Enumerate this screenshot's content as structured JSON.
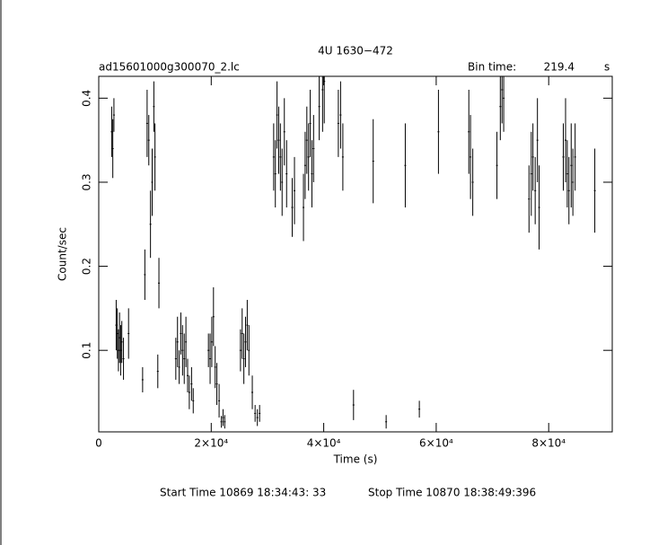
{
  "chart_data": {
    "type": "scatter",
    "title": "4U 1630−472",
    "file_label": "ad15601000g300070_2.lc",
    "bin_time_label": "Bin time:",
    "bin_time": 219.4,
    "bin_time_unit": "s",
    "x_label": "Time (s)",
    "y_label": "Count/sec",
    "start_time": "Start Time 10869 18:34:43: 33",
    "stop_time": "Stop Time 10870 18:38:49:396",
    "color": "#000000",
    "xlim": [
      0,
      91300
    ],
    "ylim": [
      0.003,
      0.426
    ],
    "xticks": [
      0,
      {
        "value": 20000,
        "label": "2×10⁴"
      },
      {
        "value": 40000,
        "label": "4×10⁴"
      },
      {
        "value": 60000,
        "label": "6×10⁴"
      },
      {
        "value": 80000,
        "label": "8×10⁴"
      }
    ],
    "yticks": [
      0.1,
      0.2,
      0.3,
      0.4
    ],
    "x": [
      2300,
      2500,
      2700,
      3100,
      3300,
      3500,
      3700,
      3900,
      4100,
      4400,
      5300,
      7800,
      8200,
      8600,
      8900,
      9200,
      9500,
      9800,
      10000,
      10500,
      10700,
      13700,
      14000,
      14300,
      14600,
      14900,
      15200,
      15500,
      15800,
      16100,
      16500,
      16800,
      19500,
      19800,
      20100,
      20400,
      20700,
      21000,
      21400,
      21800,
      22100,
      22400,
      25200,
      25500,
      25800,
      26100,
      26400,
      26700,
      27300,
      27800,
      28200,
      28600,
      31100,
      31400,
      31700,
      32000,
      32300,
      32600,
      33000,
      33400,
      34400,
      34800,
      36400,
      36700,
      37000,
      37300,
      37600,
      37900,
      38200,
      39200,
      39800,
      40100,
      42600,
      43000,
      43400,
      45300,
      48800,
      51100,
      54500,
      57000,
      60400,
      65800,
      66100,
      66500,
      70800,
      71400,
      71700,
      72000,
      76500,
      76900,
      77200,
      77600,
      78000,
      78300,
      82600,
      83000,
      83300,
      83600,
      84000,
      84300,
      84700,
      88200
    ],
    "values": [
      0.36,
      0.34,
      0.38,
      0.13,
      0.12,
      0.1,
      0.115,
      0.1,
      0.11,
      0.09,
      0.12,
      0.065,
      0.19,
      0.37,
      0.35,
      0.25,
      0.3,
      0.39,
      0.33,
      0.075,
      0.18,
      0.09,
      0.11,
      0.08,
      0.12,
      0.1,
      0.09,
      0.11,
      0.07,
      0.05,
      0.06,
      0.04,
      0.1,
      0.09,
      0.11,
      0.14,
      0.08,
      0.06,
      0.04,
      0.015,
      0.02,
      0.015,
      0.1,
      0.12,
      0.09,
      0.11,
      0.13,
      0.1,
      0.05,
      0.025,
      0.02,
      0.025,
      0.33,
      0.31,
      0.38,
      0.35,
      0.33,
      0.3,
      0.36,
      0.31,
      0.27,
      0.29,
      0.27,
      0.32,
      0.35,
      0.33,
      0.37,
      0.31,
      0.34,
      0.39,
      0.41,
      0.42,
      0.37,
      0.38,
      0.33,
      0.035,
      0.325,
      0.015,
      0.32,
      0.03,
      0.36,
      0.36,
      0.33,
      0.3,
      0.32,
      0.39,
      0.41,
      0.4,
      0.28,
      0.31,
      0.33,
      0.29,
      0.35,
      0.27,
      0.33,
      0.35,
      0.31,
      0.29,
      0.32,
      0.3,
      0.33,
      0.29
    ],
    "errors": [
      0.03,
      0.035,
      0.02,
      0.03,
      0.03,
      0.025,
      0.03,
      0.03,
      0.025,
      0.025,
      0.03,
      0.015,
      0.03,
      0.04,
      0.03,
      0.04,
      0.04,
      0.03,
      0.04,
      0.02,
      0.03,
      0.025,
      0.03,
      0.02,
      0.025,
      0.03,
      0.03,
      0.03,
      0.02,
      0.02,
      0.02,
      0.015,
      0.02,
      0.03,
      0.03,
      0.035,
      0.025,
      0.025,
      0.02,
      0.007,
      0.01,
      0.008,
      0.025,
      0.03,
      0.03,
      0.03,
      0.03,
      0.03,
      0.02,
      0.01,
      0.01,
      0.01,
      0.04,
      0.04,
      0.04,
      0.04,
      0.04,
      0.04,
      0.04,
      0.04,
      0.035,
      0.04,
      0.04,
      0.04,
      0.04,
      0.04,
      0.04,
      0.04,
      0.04,
      0.04,
      0.05,
      0.05,
      0.04,
      0.04,
      0.04,
      0.018,
      0.05,
      0.008,
      0.05,
      0.01,
      0.05,
      0.05,
      0.05,
      0.04,
      0.04,
      0.04,
      0.04,
      0.04,
      0.04,
      0.05,
      0.04,
      0.04,
      0.05,
      0.05,
      0.04,
      0.05,
      0.04,
      0.04,
      0.05,
      0.04,
      0.04,
      0.05
    ]
  }
}
